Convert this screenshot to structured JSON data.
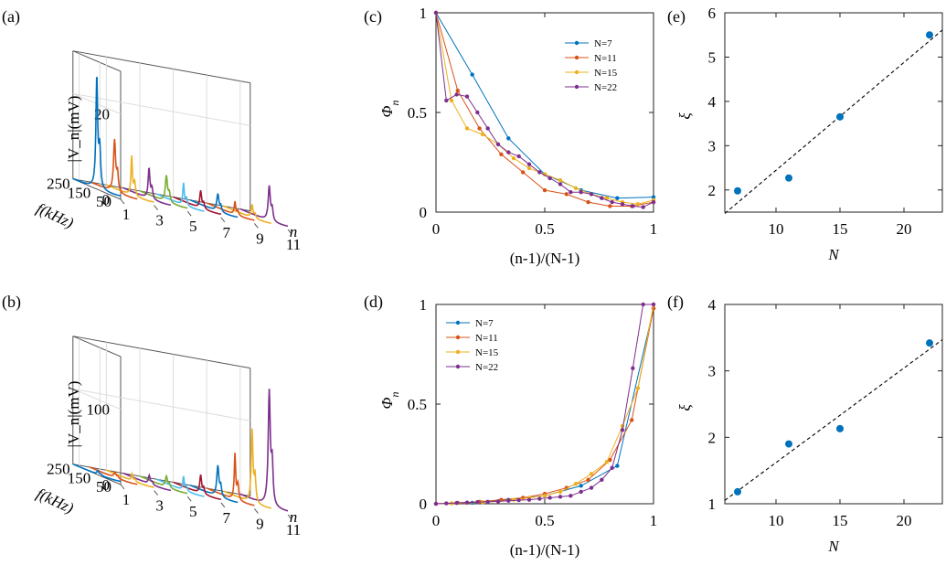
{
  "figure": {
    "panels": [
      {
        "id": "a",
        "label": "(a)"
      },
      {
        "id": "b",
        "label": "(b)"
      },
      {
        "id": "c",
        "label": "(c)"
      },
      {
        "id": "d",
        "label": "(d)"
      },
      {
        "id": "e",
        "label": "(e)"
      },
      {
        "id": "f",
        "label": "(f)"
      }
    ]
  },
  "colors": {
    "palette": [
      "#0072BD",
      "#D95319",
      "#EDB120",
      "#7E2F8E",
      "#77AC30",
      "#4DBEEE",
      "#A2142F"
    ]
  },
  "chart_data": [
    {
      "id": "a",
      "type": "waterfall3d",
      "zlabel": "|V_n|(mV)",
      "ylabel": "f(kHz)",
      "xlabel": "n",
      "zticks": [
        0,
        20
      ],
      "yticks": [
        250,
        150,
        50
      ],
      "xticks": [
        1,
        3,
        5,
        7,
        9,
        11
      ],
      "zmax": 30,
      "series": [
        {
          "n": 1,
          "peak_f": 165,
          "peak_v": 26
        },
        {
          "n": 2,
          "peak_f": 160,
          "peak_v": 12
        },
        {
          "n": 3,
          "peak_f": 158,
          "peak_v": 9
        },
        {
          "n": 4,
          "peak_f": 155,
          "peak_v": 7
        },
        {
          "n": 5,
          "peak_f": 152,
          "peak_v": 6
        },
        {
          "n": 6,
          "peak_f": 150,
          "peak_v": 5
        },
        {
          "n": 7,
          "peak_f": 148,
          "peak_v": 4
        },
        {
          "n": 8,
          "peak_f": 146,
          "peak_v": 4
        },
        {
          "n": 9,
          "peak_f": 144,
          "peak_v": 3
        },
        {
          "n": 10,
          "peak_f": 142,
          "peak_v": 3
        },
        {
          "n": 11,
          "peak_f": 140,
          "peak_v": 8
        }
      ]
    },
    {
      "id": "b",
      "type": "waterfall3d",
      "zlabel": "|V_n|(mV)",
      "ylabel": "f(kHz)",
      "xlabel": "n",
      "zticks": [
        0,
        100
      ],
      "yticks": [
        250,
        150,
        50
      ],
      "xticks": [
        1,
        3,
        5,
        7,
        9,
        11
      ],
      "zmax": 170,
      "series": [
        {
          "n": 1,
          "peak_f": 160,
          "peak_v": 5
        },
        {
          "n": 2,
          "peak_f": 158,
          "peak_v": 7
        },
        {
          "n": 3,
          "peak_f": 156,
          "peak_v": 9
        },
        {
          "n": 4,
          "peak_f": 154,
          "peak_v": 11
        },
        {
          "n": 5,
          "peak_f": 152,
          "peak_v": 14
        },
        {
          "n": 6,
          "peak_f": 150,
          "peak_v": 18
        },
        {
          "n": 7,
          "peak_f": 148,
          "peak_v": 24
        },
        {
          "n": 8,
          "peak_f": 146,
          "peak_v": 40
        },
        {
          "n": 9,
          "peak_f": 144,
          "peak_v": 60
        },
        {
          "n": 10,
          "peak_f": 142,
          "peak_v": 95
        },
        {
          "n": 11,
          "peak_f": 140,
          "peak_v": 150
        }
      ]
    },
    {
      "id": "c",
      "type": "line",
      "xlabel": "(n-1)/(N-1)",
      "ylabel": "Φn",
      "xlim": [
        0,
        1
      ],
      "ylim": [
        0,
        1
      ],
      "xticks": [
        "0",
        "0.5",
        "1"
      ],
      "yticks": [
        "0",
        "0.5",
        "1"
      ],
      "legend": "top-right",
      "series": [
        {
          "name": "N=7",
          "color": "#0072BD",
          "y": [
            1,
            0.69,
            0.37,
            0.19,
            0.11,
            0.07,
            0.075
          ]
        },
        {
          "name": "N=11",
          "color": "#D95319",
          "y": [
            1,
            0.61,
            0.42,
            0.29,
            0.2,
            0.11,
            0.09,
            0.05,
            0.03,
            0.03,
            0.05
          ]
        },
        {
          "name": "N=15",
          "color": "#EDB120",
          "y": [
            1,
            0.56,
            0.42,
            0.39,
            0.34,
            0.27,
            0.22,
            0.19,
            0.16,
            0.12,
            0.09,
            0.07,
            0.05,
            0.04,
            0.06
          ]
        },
        {
          "name": "N=22",
          "color": "#7E2F8E",
          "y": [
            1,
            0.56,
            0.59,
            0.58,
            0.5,
            0.42,
            0.34,
            0.3,
            0.28,
            0.24,
            0.2,
            0.17,
            0.14,
            0.1,
            0.1,
            0.09,
            0.07,
            0.05,
            0.04,
            0.03,
            0.025,
            0.05
          ]
        }
      ]
    },
    {
      "id": "d",
      "type": "line",
      "xlabel": "(n-1)/(N-1)",
      "ylabel": "Φn",
      "xlim": [
        0,
        1
      ],
      "ylim": [
        0,
        1
      ],
      "xticks": [
        "0",
        "0.5",
        "1"
      ],
      "yticks": [
        "0",
        "0.5",
        "1"
      ],
      "legend": "top-left",
      "series": [
        {
          "name": "N=7",
          "color": "#0072BD",
          "y": [
            0,
            0.005,
            0.02,
            0.04,
            0.09,
            0.19,
            0.98
          ]
        },
        {
          "name": "N=11",
          "color": "#D95319",
          "y": [
            0,
            0.005,
            0.01,
            0.02,
            0.03,
            0.05,
            0.08,
            0.12,
            0.22,
            0.42,
            0.98
          ]
        },
        {
          "name": "N=15",
          "color": "#EDB120",
          "y": [
            0,
            0.002,
            0.004,
            0.008,
            0.012,
            0.02,
            0.03,
            0.04,
            0.06,
            0.1,
            0.15,
            0.21,
            0.39,
            0.58,
            1.0
          ]
        },
        {
          "name": "N=22",
          "color": "#7E2F8E",
          "y": [
            0,
            0.002,
            0.004,
            0.006,
            0.008,
            0.01,
            0.012,
            0.015,
            0.018,
            0.02,
            0.025,
            0.03,
            0.035,
            0.04,
            0.06,
            0.08,
            0.12,
            0.18,
            0.37,
            0.68,
            1.0,
            1.0
          ]
        }
      ]
    },
    {
      "id": "e",
      "type": "scatter",
      "xlabel": "N",
      "ylabel": "ξ",
      "xlim": [
        6,
        23
      ],
      "ylim": [
        1.5,
        6
      ],
      "xticks": [
        10,
        15,
        20
      ],
      "yticks": [
        2,
        3,
        4,
        5,
        6
      ],
      "color": "#0072BD",
      "points": [
        {
          "x": 7,
          "y": 1.98
        },
        {
          "x": 11,
          "y": 2.27
        },
        {
          "x": 15,
          "y": 3.65
        },
        {
          "x": 22,
          "y": 5.5
        }
      ],
      "fit": {
        "x": [
          6,
          23
        ],
        "y": [
          1.47,
          5.61
        ]
      }
    },
    {
      "id": "f",
      "type": "scatter",
      "xlabel": "N",
      "ylabel": "ξ",
      "xlim": [
        6,
        23
      ],
      "ylim": [
        1,
        4
      ],
      "xticks": [
        10,
        15,
        20
      ],
      "yticks": [
        1,
        2,
        3,
        4
      ],
      "color": "#0072BD",
      "points": [
        {
          "x": 7,
          "y": 1.18
        },
        {
          "x": 11,
          "y": 1.9
        },
        {
          "x": 15,
          "y": 2.13
        },
        {
          "x": 22,
          "y": 3.42
        }
      ],
      "fit": {
        "x": [
          6,
          23
        ],
        "y": [
          1.05,
          3.47
        ]
      }
    }
  ]
}
